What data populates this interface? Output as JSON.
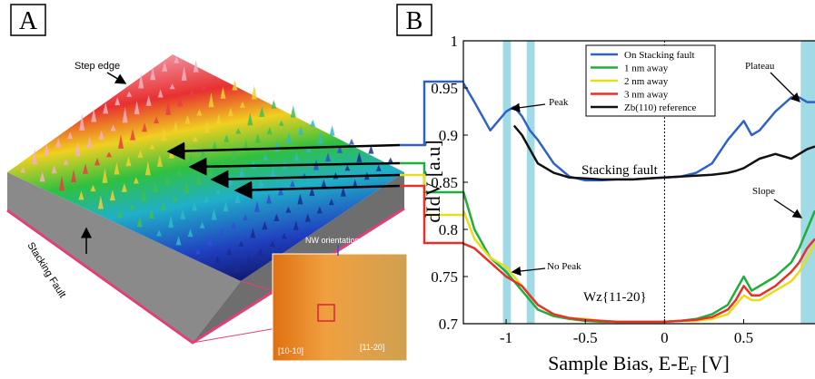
{
  "panel_a": {
    "label": "A",
    "step_edge": "Step edge",
    "stacking_fault": "Stacking Fault",
    "nw_orientation": "NW orientation",
    "inset_left": "[10-10]",
    "inset_right": "[11-20]"
  },
  "chart_data": {
    "type": "line",
    "panel_label": "B",
    "ylabel": "dIdV [a.u]",
    "xlabel": {
      "text": "Sample Bias, E-E",
      "subscript": "F",
      "suffix": " [V]"
    },
    "x": [
      -1.27,
      -1.2,
      -1.1,
      -1.0,
      -0.95,
      -0.9,
      -0.85,
      -0.8,
      -0.7,
      -0.6,
      -0.5,
      -0.4,
      -0.3,
      -0.2,
      -0.1,
      0,
      0.1,
      0.2,
      0.3,
      0.4,
      0.45,
      0.5,
      0.55,
      0.6,
      0.7,
      0.8,
      0.85,
      0.9,
      0.95
    ],
    "series": [
      {
        "name": "On Stacking fault",
        "color": "#2f62c8",
        "values": [
          0.955,
          0.935,
          0.905,
          0.925,
          0.93,
          0.92,
          0.905,
          0.895,
          0.87,
          0.856,
          0.852,
          0.852,
          0.853,
          0.853,
          0.854,
          0.855,
          0.856,
          0.86,
          0.87,
          0.895,
          0.905,
          0.915,
          0.9,
          0.905,
          0.925,
          0.94,
          0.94,
          0.935,
          0.935
        ]
      },
      {
        "name": "1 nm away",
        "color": "#1fae3c",
        "values": [
          0.84,
          0.8,
          0.77,
          0.755,
          0.745,
          0.735,
          0.725,
          0.715,
          0.708,
          0.705,
          0.703,
          0.702,
          0.702,
          0.702,
          0.702,
          0.702,
          0.703,
          0.705,
          0.71,
          0.72,
          0.735,
          0.75,
          0.735,
          0.74,
          0.75,
          0.765,
          0.78,
          0.8,
          0.82
        ]
      },
      {
        "name": "2 nm away",
        "color": "#e8dc1c",
        "values": [
          0.82,
          0.79,
          0.77,
          0.76,
          0.75,
          0.74,
          0.73,
          0.72,
          0.71,
          0.706,
          0.705,
          0.703,
          0.702,
          0.702,
          0.702,
          0.702,
          0.703,
          0.703,
          0.705,
          0.71,
          0.72,
          0.73,
          0.725,
          0.725,
          0.735,
          0.745,
          0.755,
          0.77,
          0.785
        ]
      },
      {
        "name": "3 nm away",
        "color": "#e8302a",
        "values": [
          0.785,
          0.78,
          0.765,
          0.75,
          0.745,
          0.74,
          0.73,
          0.72,
          0.71,
          0.706,
          0.704,
          0.703,
          0.702,
          0.702,
          0.702,
          0.702,
          0.703,
          0.704,
          0.707,
          0.715,
          0.725,
          0.74,
          0.73,
          0.73,
          0.74,
          0.755,
          0.765,
          0.78,
          0.79
        ]
      },
      {
        "name": "Zb(110) reference",
        "color": "#111111",
        "values": [
          null,
          null,
          null,
          null,
          0.91,
          0.9,
          0.885,
          0.87,
          0.86,
          0.855,
          0.854,
          0.853,
          0.853,
          0.853,
          0.854,
          0.855,
          0.856,
          0.857,
          0.858,
          0.86,
          0.862,
          0.865,
          0.87,
          0.875,
          0.88,
          0.875,
          0.88,
          0.885,
          0.888
        ]
      }
    ],
    "xlim": [
      -1.27,
      0.95
    ],
    "ylim": [
      0.7,
      1
    ],
    "xticks": [
      -1,
      -0.5,
      0,
      0.5
    ],
    "yticks": [
      0.7,
      0.75,
      0.8,
      0.85,
      0.9,
      0.95,
      1
    ],
    "highlight_bands": [
      [
        -1.02,
        -0.97
      ],
      [
        -0.87,
        -0.82
      ],
      [
        0.86,
        0.95
      ]
    ],
    "zero_line": 0,
    "legend": "upper right",
    "annotations": [
      "Peak",
      "Plateau",
      "Stacking fault",
      "Slope",
      "No Peak",
      "Wz{11-20}"
    ]
  }
}
